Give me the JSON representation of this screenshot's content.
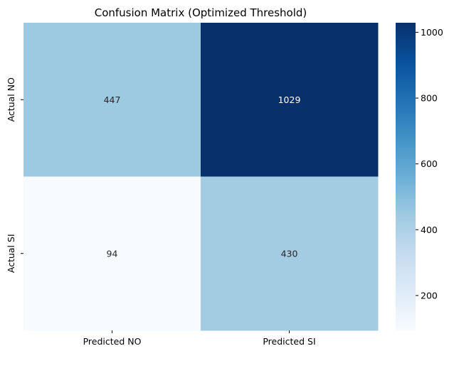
{
  "chart_data": {
    "type": "heatmap",
    "title": "Confusion Matrix (Optimized Threshold)",
    "xlabel": "",
    "ylabel": "",
    "x_categories": [
      "Predicted NO",
      "Predicted SI"
    ],
    "y_categories": [
      "Actual NO",
      "Actual SI"
    ],
    "values": [
      [
        447,
        1029
      ],
      [
        94,
        430
      ]
    ],
    "colormap": "Blues",
    "value_range": [
      94,
      1029
    ],
    "colorbar_ticks": [
      200,
      400,
      600,
      800,
      1000
    ],
    "grid": false,
    "legend": "colorbar-right"
  },
  "colors": {
    "colormap_stops": [
      "#f7fbff",
      "#deebf7",
      "#c6dbef",
      "#9ecae1",
      "#6baed6",
      "#4292c6",
      "#2171b5",
      "#08519c",
      "#08306b"
    ],
    "light_text": "#ffffff",
    "dark_text": "#262626",
    "axis": "#000000"
  }
}
